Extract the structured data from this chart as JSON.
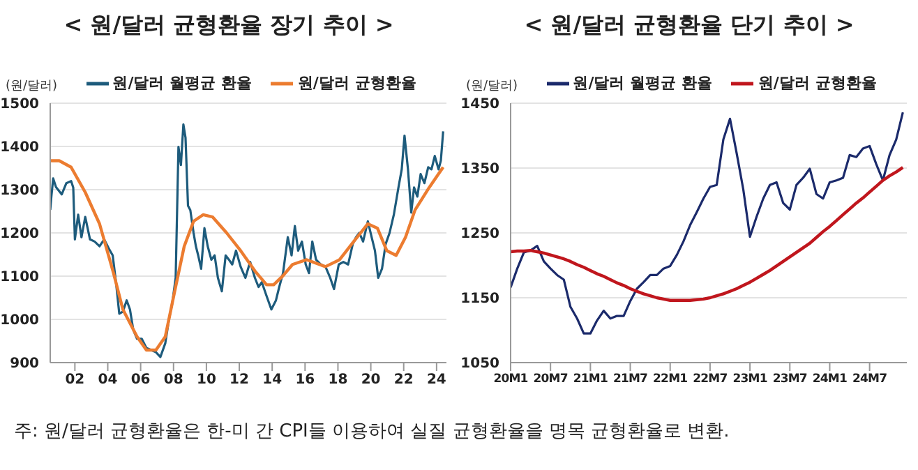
{
  "chart_data": [
    {
      "type": "line",
      "title": "< 원/달러 균형환율 장기 추이 >",
      "ylabel": "(원/달러)",
      "legend": "top",
      "grid": "y",
      "marker": "none",
      "line_style": "solid",
      "annotations": [
        "주: 원/달러 균형환율은 한-미 간 CPI들 이용하여 실질 균형환율을 명목 균형환율로 변환."
      ],
      "xlim": [
        2000.5,
        2024.6
      ],
      "xticks": [
        {
          "value": 2002,
          "label": "02"
        },
        {
          "value": 2004,
          "label": "04"
        },
        {
          "value": 2006,
          "label": "06"
        },
        {
          "value": 2008,
          "label": "08"
        },
        {
          "value": 2010,
          "label": "10"
        },
        {
          "value": 2012,
          "label": "12"
        },
        {
          "value": 2014,
          "label": "14"
        },
        {
          "value": 2016,
          "label": "16"
        },
        {
          "value": 2018,
          "label": "18"
        },
        {
          "value": 2020,
          "label": "20"
        },
        {
          "value": 2022,
          "label": "22"
        },
        {
          "value": 2024,
          "label": "24"
        }
      ],
      "ylim": [
        900,
        1500
      ],
      "yticks": [
        900,
        1000,
        1100,
        1200,
        1300,
        1400,
        1500
      ],
      "series": [
        {
          "name": "원/달러 월평균 환율",
          "color": "#1d5b7c",
          "x": [
            2000.5,
            2000.57,
            2000.68,
            2000.85,
            2001.2,
            2001.48,
            2001.77,
            2001.9,
            2002.0,
            2002.2,
            2002.4,
            2002.63,
            2002.92,
            2003.2,
            2003.5,
            2003.78,
            2004.06,
            2004.3,
            2004.5,
            2004.7,
            2004.92,
            2005.15,
            2005.35,
            2005.55,
            2005.78,
            2006.07,
            2006.35,
            2006.64,
            2006.93,
            2007.2,
            2007.5,
            2007.73,
            2007.93,
            2008.13,
            2008.3,
            2008.45,
            2008.6,
            2008.73,
            2008.88,
            2009.02,
            2009.22,
            2009.36,
            2009.5,
            2009.68,
            2009.88,
            2010.08,
            2010.3,
            2010.5,
            2010.7,
            2010.94,
            2011.17,
            2011.37,
            2011.57,
            2011.8,
            2012.08,
            2012.37,
            2012.66,
            2012.95,
            2013.17,
            2013.37,
            2013.66,
            2013.95,
            2014.23,
            2014.43,
            2014.66,
            2014.95,
            2015.18,
            2015.38,
            2015.58,
            2015.81,
            2016.04,
            2016.24,
            2016.44,
            2016.67,
            2016.96,
            2017.24,
            2017.53,
            2017.76,
            2018.05,
            2018.33,
            2018.62,
            2018.9,
            2019.1,
            2019.3,
            2019.53,
            2019.82,
            2020.05,
            2020.25,
            2020.45,
            2020.68,
            2020.9,
            2021.14,
            2021.4,
            2021.68,
            2021.88,
            2022.05,
            2022.26,
            2022.46,
            2022.63,
            2022.83,
            2023.03,
            2023.26,
            2023.49,
            2023.69,
            2023.89,
            2024.12,
            2024.26,
            2024.4
          ],
          "values": [
            1253,
            1284,
            1326,
            1306,
            1289,
            1315,
            1320,
            1305,
            1185,
            1242,
            1190,
            1237,
            1185,
            1180,
            1169,
            1185,
            1164,
            1148,
            1086,
            1013,
            1018,
            1044,
            1023,
            976,
            955,
            955,
            934,
            929,
            924,
            913,
            945,
            1002,
            1039,
            1096,
            1399,
            1357,
            1451,
            1420,
            1263,
            1253,
            1200,
            1169,
            1148,
            1117,
            1211,
            1169,
            1138,
            1148,
            1096,
            1065,
            1148,
            1138,
            1127,
            1159,
            1122,
            1096,
            1133,
            1096,
            1075,
            1086,
            1054,
            1023,
            1044,
            1075,
            1107,
            1190,
            1148,
            1216,
            1159,
            1180,
            1127,
            1107,
            1180,
            1138,
            1127,
            1122,
            1096,
            1070,
            1127,
            1133,
            1127,
            1174,
            1190,
            1200,
            1180,
            1227,
            1190,
            1159,
            1096,
            1117,
            1174,
            1200,
            1242,
            1305,
            1347,
            1425,
            1347,
            1247,
            1305,
            1284,
            1336,
            1315,
            1352,
            1347,
            1378,
            1347,
            1367,
            1435
          ]
        },
        {
          "name": "원/달러 균형환율",
          "color": "#ec7c30",
          "x": [
            2000.5,
            2001.05,
            2001.77,
            2002.63,
            2003.5,
            2004.35,
            2004.92,
            2005.78,
            2006.35,
            2006.93,
            2007.5,
            2008.07,
            2008.65,
            2009.22,
            2009.8,
            2010.37,
            2011.23,
            2012.08,
            2012.95,
            2013.66,
            2014.09,
            2014.66,
            2015.24,
            2016.1,
            2017.24,
            2018.1,
            2018.96,
            2019.82,
            2020.4,
            2020.97,
            2021.54,
            2022.11,
            2022.69,
            2023.55,
            2024.4
          ],
          "values": [
            1367,
            1367,
            1352,
            1294,
            1221,
            1107,
            1023,
            960,
            929,
            929,
            960,
            1065,
            1169,
            1227,
            1242,
            1237,
            1200,
            1159,
            1112,
            1080,
            1080,
            1101,
            1127,
            1138,
            1122,
            1138,
            1180,
            1221,
            1211,
            1159,
            1148,
            1190,
            1253,
            1305,
            1352
          ]
        }
      ]
    },
    {
      "type": "line",
      "title": "< 원/달러 균형환율 단기 추이 >",
      "ylabel": "(원/달러)",
      "legend": "top",
      "grid": "y",
      "marker": "none",
      "line_style": "solid",
      "categories": [
        "20M1",
        null,
        null,
        null,
        null,
        null,
        "20M7",
        null,
        null,
        null,
        null,
        null,
        "21M1",
        null,
        null,
        null,
        null,
        null,
        "21M7",
        null,
        null,
        null,
        null,
        null,
        "22M1",
        null,
        null,
        null,
        null,
        null,
        "22M7",
        null,
        null,
        null,
        null,
        null,
        "23M1",
        null,
        null,
        null,
        null,
        null,
        "23M7",
        null,
        null,
        null,
        null,
        null,
        "24M1",
        null,
        null,
        null,
        null,
        null,
        "24M7",
        null,
        null,
        null,
        null,
        null
      ],
      "ylim": [
        1050,
        1450
      ],
      "yticks": [
        1050,
        1150,
        1250,
        1350,
        1450
      ],
      "series": [
        {
          "name": "원/달러 월평균 환율",
          "color": "#1b2a6b",
          "values": [
            1166,
            1195,
            1220,
            1223,
            1230,
            1206,
            1195,
            1185,
            1178,
            1136,
            1118,
            1095,
            1095,
            1115,
            1130,
            1118,
            1122,
            1122,
            1145,
            1164,
            1174,
            1185,
            1185,
            1195,
            1199,
            1216,
            1237,
            1262,
            1282,
            1303,
            1321,
            1324,
            1394,
            1426,
            1373,
            1317,
            1244,
            1275,
            1303,
            1324,
            1328,
            1296,
            1286,
            1324,
            1335,
            1349,
            1310,
            1303,
            1328,
            1331,
            1335,
            1370,
            1367,
            1380,
            1384,
            1356,
            1331,
            1370,
            1394,
            1436
          ]
        },
        {
          "name": "원/달러 균형환율",
          "color": "#c0161d",
          "values": [
            1221,
            1222,
            1222,
            1223,
            1221,
            1219,
            1216,
            1213,
            1210,
            1206,
            1201,
            1197,
            1192,
            1187,
            1183,
            1178,
            1173,
            1169,
            1164,
            1160,
            1156,
            1153,
            1150,
            1148,
            1146,
            1146,
            1146,
            1146,
            1147,
            1148,
            1150,
            1153,
            1156,
            1160,
            1164,
            1169,
            1174,
            1180,
            1186,
            1192,
            1199,
            1206,
            1213,
            1220,
            1227,
            1234,
            1243,
            1252,
            1260,
            1269,
            1278,
            1287,
            1296,
            1304,
            1313,
            1322,
            1331,
            1338,
            1344,
            1351
          ]
        }
      ]
    }
  ]
}
